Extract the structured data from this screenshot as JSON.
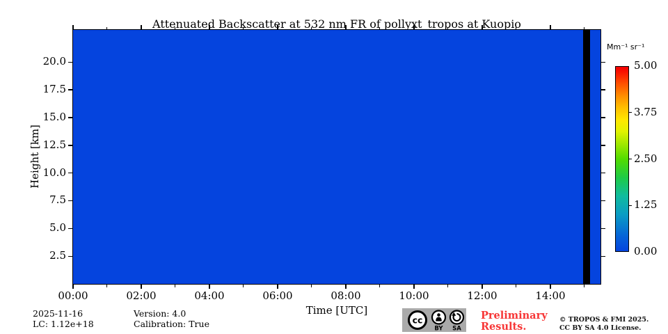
{
  "chart_data": {
    "type": "heatmap",
    "title": "Attenuated Backscatter at 532 nm FR of pollyxt_tropos at Kuopio",
    "xlabel": "Time [UTC]",
    "ylabel": "Height [km]",
    "x_ticks": [
      "00:00",
      "02:00",
      "04:00",
      "06:00",
      "08:00",
      "10:00",
      "12:00",
      "14:00"
    ],
    "x_tick_hours": [
      0,
      2,
      4,
      6,
      8,
      10,
      12,
      14
    ],
    "x_minor_hours": [
      1,
      3,
      5,
      7,
      9,
      11,
      13,
      15
    ],
    "x_range_hours": [
      0,
      15.47
    ],
    "y_ticks": [
      "2.5",
      "5.0",
      "7.5",
      "10.0",
      "12.5",
      "15.0",
      "17.5",
      "20.0"
    ],
    "y_tick_km": [
      2.5,
      5.0,
      7.5,
      10.0,
      12.5,
      15.0,
      17.5,
      20.0
    ],
    "y_range_km": [
      0,
      22.9
    ],
    "grid": false,
    "fill_description": "uniform near-zero attenuated backscatter (~0.00) over the whole time-height field",
    "fill_value": 0.0,
    "fill_color": "#0544DE",
    "data_gap": {
      "start_hour": 14.96,
      "end_hour": 15.16,
      "color": "#000000"
    },
    "colorbar": {
      "unit_label": "Mm⁻¹ sr⁻¹",
      "ticks": [
        "5.00",
        "3.75",
        "2.50",
        "1.25",
        "0.00"
      ],
      "tick_values": [
        5.0,
        3.75,
        2.5,
        1.25,
        0.0
      ],
      "range": [
        0,
        5
      ],
      "colormap": "jet-like (blue, cyan, green, yellow, orange, red)",
      "position": "right"
    }
  },
  "annotations": {
    "date": "2025-11-16",
    "lc": "LC: 1.12e+18",
    "version": "Version: 4.0",
    "calibration": "Calibration: True",
    "preliminary_line1": "Preliminary",
    "preliminary_line2": "Results.",
    "copyright_line1": "© TROPOS & FMI 2025.",
    "copyright_line2": "CC BY SA 4.0 License.",
    "badge": {
      "cc_label": "cc",
      "by_label": "BY",
      "sa_label": "SA"
    }
  }
}
